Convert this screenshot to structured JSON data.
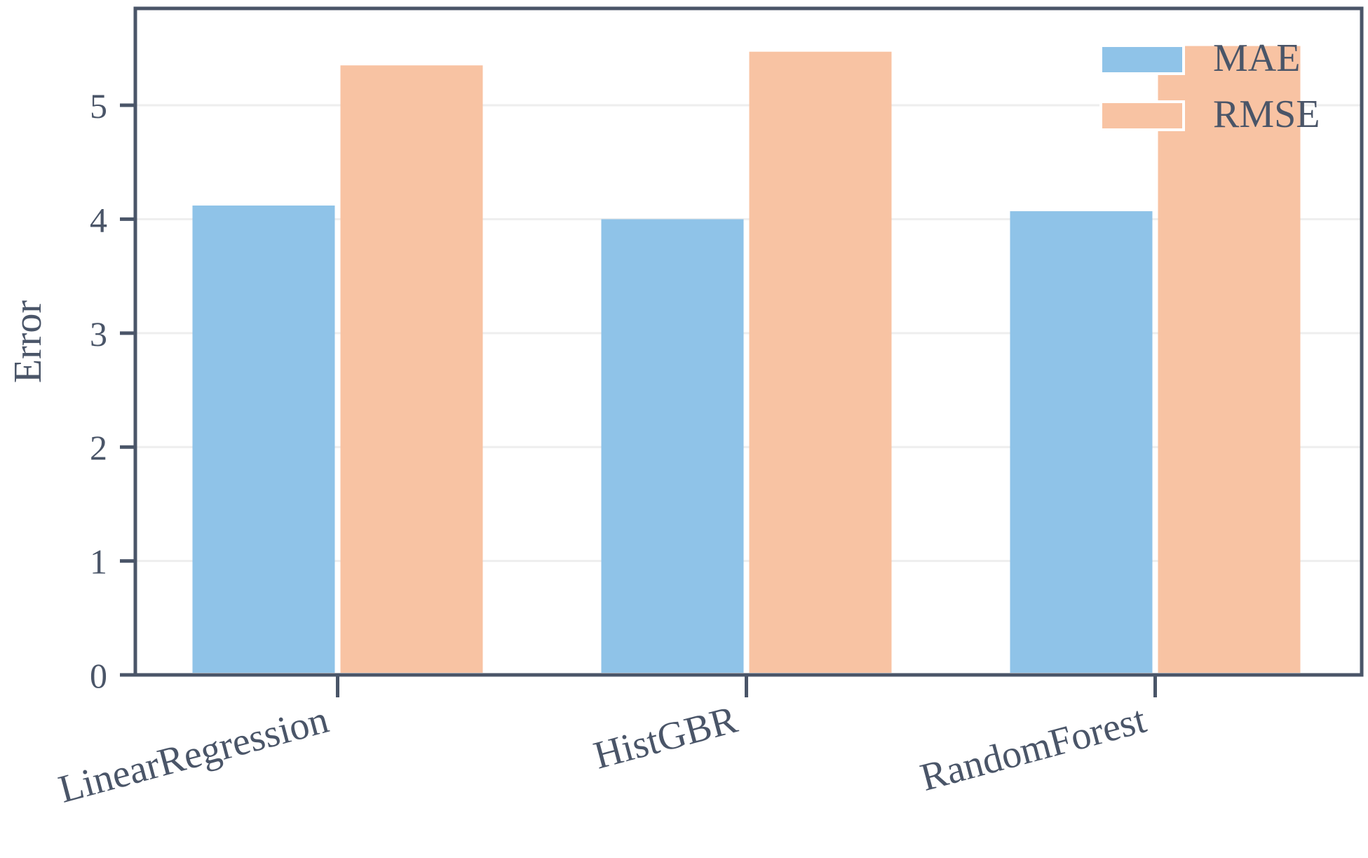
{
  "chart_data": {
    "type": "bar",
    "title": "",
    "xlabel": "",
    "ylabel": "Error",
    "categories": [
      "LinearRegression",
      "HistGBR",
      "RandomForest"
    ],
    "series": [
      {
        "name": "MAE",
        "values": [
          4.12,
          4.0,
          4.07
        ],
        "color": "#8fc3e8"
      },
      {
        "name": "RMSE",
        "values": [
          5.35,
          5.47,
          5.52
        ],
        "color": "#f8c3a3"
      }
    ],
    "ylim": [
      0,
      5.85
    ],
    "yticks": [
      0,
      1,
      2,
      3,
      4,
      5
    ],
    "ytick_labels": [
      "0",
      "1",
      "2",
      "3",
      "4",
      "5"
    ],
    "grid": true,
    "legend_position": "top-right",
    "colors": {
      "axis": "#4a5568",
      "grid": "#eeeeee",
      "text": "#4a5568"
    }
  }
}
